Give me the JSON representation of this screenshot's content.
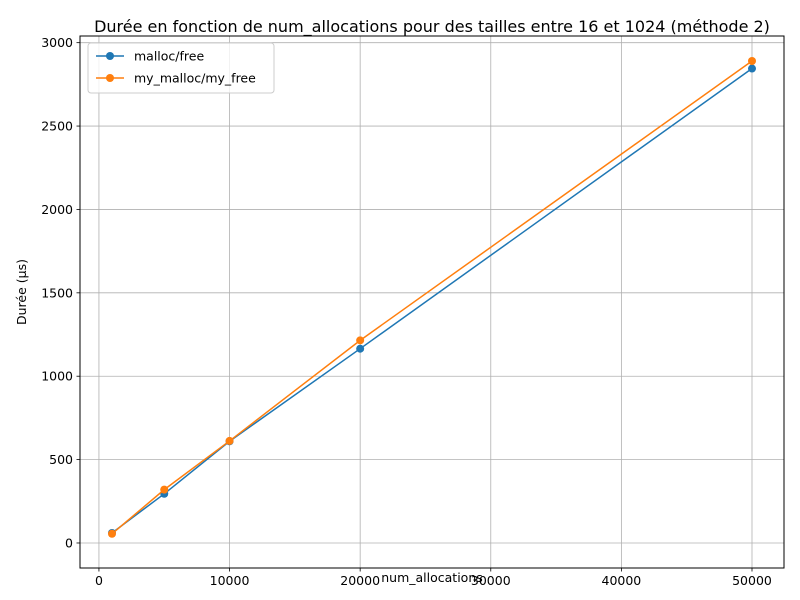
{
  "chart_data": {
    "type": "line",
    "title": "Durée en fonction de num_allocations pour des tailles entre 16 et 1024 (méthode 2)",
    "xlabel": "num_allocations",
    "ylabel": "Durée (µs)",
    "xlim": [
      -1450,
      52450
    ],
    "ylim": [
      -150,
      3040
    ],
    "x_ticks": [
      0,
      10000,
      20000,
      30000,
      40000,
      50000
    ],
    "y_ticks": [
      0,
      500,
      1000,
      1500,
      2000,
      2500,
      3000
    ],
    "grid": true,
    "legend_position": "upper left",
    "x": [
      1000,
      5000,
      10000,
      20000,
      50000
    ],
    "series": [
      {
        "name": "malloc/free",
        "color": "#1f77b4",
        "values": [
          60,
          295,
          610,
          1165,
          2845
        ]
      },
      {
        "name": "my_malloc/my_free",
        "color": "#ff7f0e",
        "values": [
          55,
          320,
          612,
          1215,
          2890
        ]
      }
    ]
  }
}
